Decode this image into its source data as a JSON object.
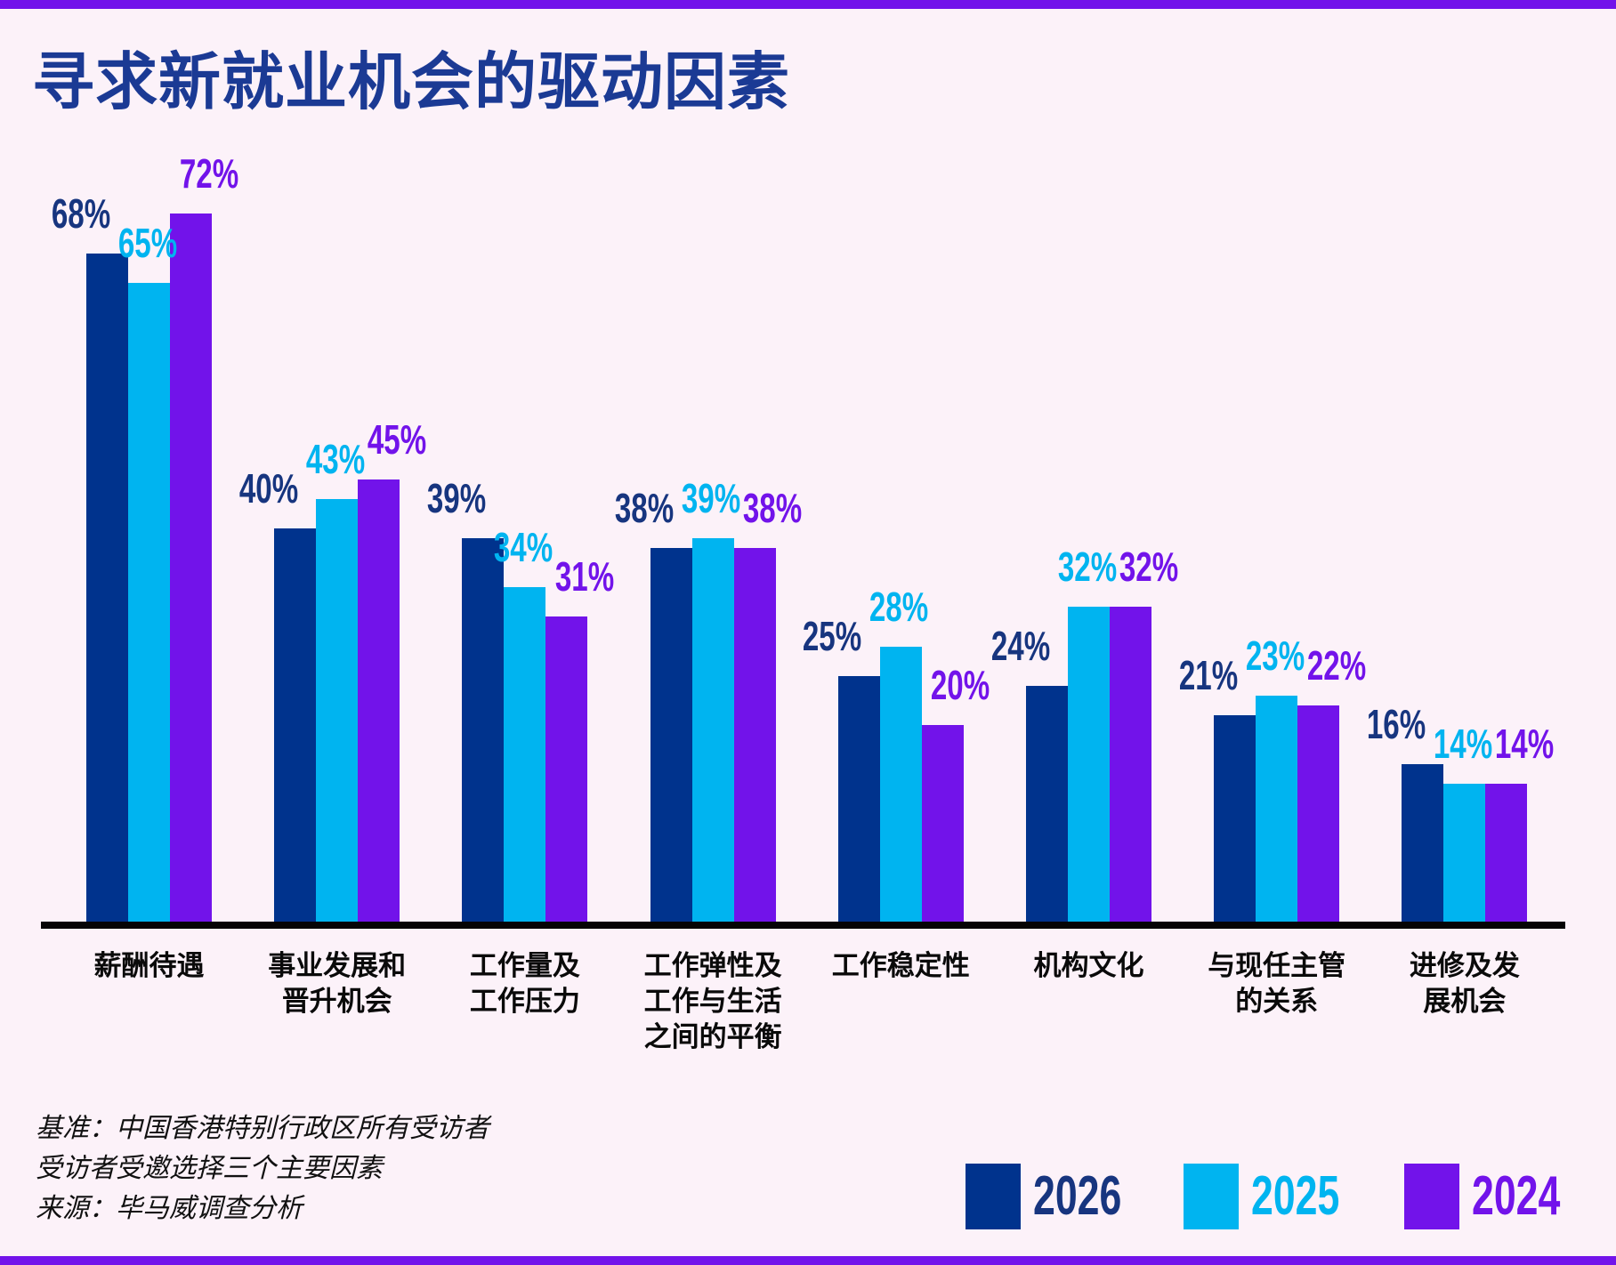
{
  "page": {
    "background_color": "#FCF2F9",
    "accent_strip_color": "#7213EA",
    "title_color": "#1B3A94",
    "axis_color": "#050505"
  },
  "chart_data": {
    "type": "bar",
    "title": "寻求新就业机会的驱动因素",
    "categories": [
      "薪酬待遇",
      "事业发展和\n晋升机会",
      "工作量及\n工作压力",
      "工作弹性及\n工作与生活\n之间的平衡",
      "工作稳定性",
      "机构文化",
      "与现任主管\n的关系",
      "进修及发\n展机会"
    ],
    "series": [
      {
        "name": "2026",
        "color": "#00338D",
        "label_color": "#17357F",
        "values": [
          68,
          40,
          39,
          38,
          25,
          24,
          21,
          16
        ]
      },
      {
        "name": "2025",
        "color": "#00B4F0",
        "label_color": "#00B4F0",
        "values": [
          65,
          43,
          34,
          39,
          28,
          32,
          23,
          14
        ]
      },
      {
        "name": "2024",
        "color": "#7213EA",
        "label_color": "#7213EA",
        "values": [
          72,
          45,
          31,
          38,
          20,
          32,
          22,
          14
        ]
      }
    ],
    "value_suffix": "%",
    "ylabel": "",
    "xlabel": "",
    "ylim": [
      0,
      80
    ],
    "grid": false,
    "legend_position": "bottom-right"
  },
  "footer": {
    "lines": [
      "基准：中国香港特别行政区所有受访者",
      "受访者受邀选择三个主要因素",
      "来源：毕马威调查分析"
    ]
  }
}
